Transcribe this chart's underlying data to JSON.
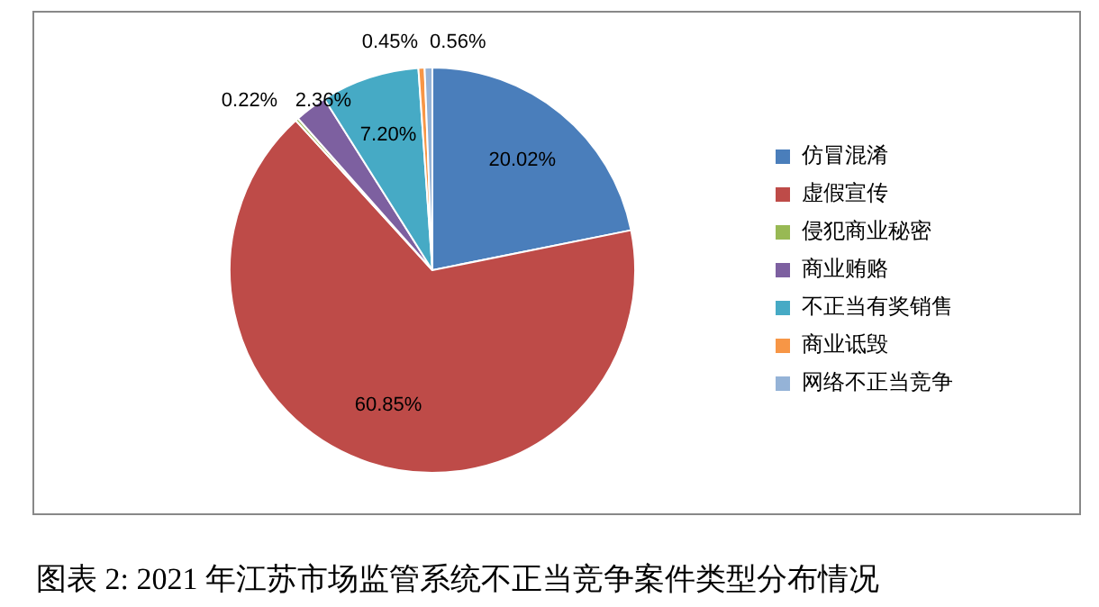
{
  "chart_data": {
    "type": "pie",
    "title": "图表 2: 2021 年江苏市场监管系统不正当竞争案件类型分布情况",
    "categories": [
      "仿冒混淆",
      "虚假宣传",
      "侵犯商业秘密",
      "商业贿赂",
      "不正当有奖销售",
      "商业诋毁",
      "网络不正当竞争"
    ],
    "values": [
      20.02,
      60.85,
      0.22,
      2.36,
      7.2,
      0.45,
      0.56
    ],
    "colors": [
      "#4a7ebb",
      "#be4b48",
      "#98b954",
      "#7d60a0",
      "#46aac5",
      "#f79646",
      "#95b3d7"
    ],
    "value_labels": [
      "20.02%",
      "60.85%",
      "0.22%",
      "2.36%",
      "7.20%",
      "0.45%",
      "0.56%"
    ],
    "legend": "right"
  }
}
